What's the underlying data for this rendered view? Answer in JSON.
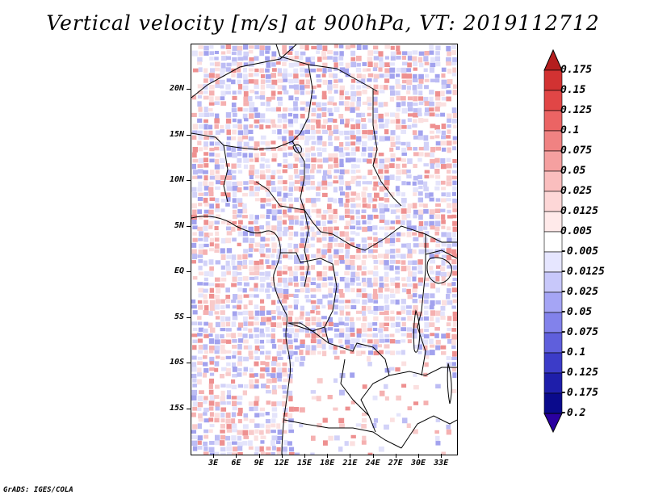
{
  "title": "Vertical velocity [m/s] at 900hPa, VT: 2019112712",
  "footer": "GrADS: IGES/COLA",
  "map": {
    "lat_range": [
      -20,
      25
    ],
    "lon_range": [
      0,
      35
    ],
    "lat_labels": [
      "20N",
      "15N",
      "10N",
      "5N",
      "EQ",
      "5S",
      "10S",
      "15S"
    ],
    "lon_labels": [
      "3E",
      "6E",
      "9E",
      "12E",
      "15E",
      "18E",
      "21E",
      "24E",
      "27E",
      "30E",
      "33E"
    ]
  },
  "colorbar": {
    "labels": [
      "0.175",
      "0.15",
      "0.125",
      "0.1",
      "0.075",
      "0.05",
      "0.025",
      "0.0125",
      "0.005",
      "-0.005",
      "-0.0125",
      "-0.025",
      "-0.05",
      "-0.075",
      "-0.1",
      "-0.125",
      "-0.175",
      "-0.2"
    ],
    "colors": [
      "#b41e1e",
      "#d23232",
      "#e14646",
      "#eb6464",
      "#f08282",
      "#f5a0a0",
      "#fabebe",
      "#fdd7d7",
      "#ffeaea",
      "#ffffff",
      "#e6e6ff",
      "#c8c8fa",
      "#a5a5f5",
      "#8282eb",
      "#5f5fdc",
      "#3c3cc8",
      "#1e1eaa",
      "#0a0a8c",
      "#2a00a0"
    ]
  }
}
